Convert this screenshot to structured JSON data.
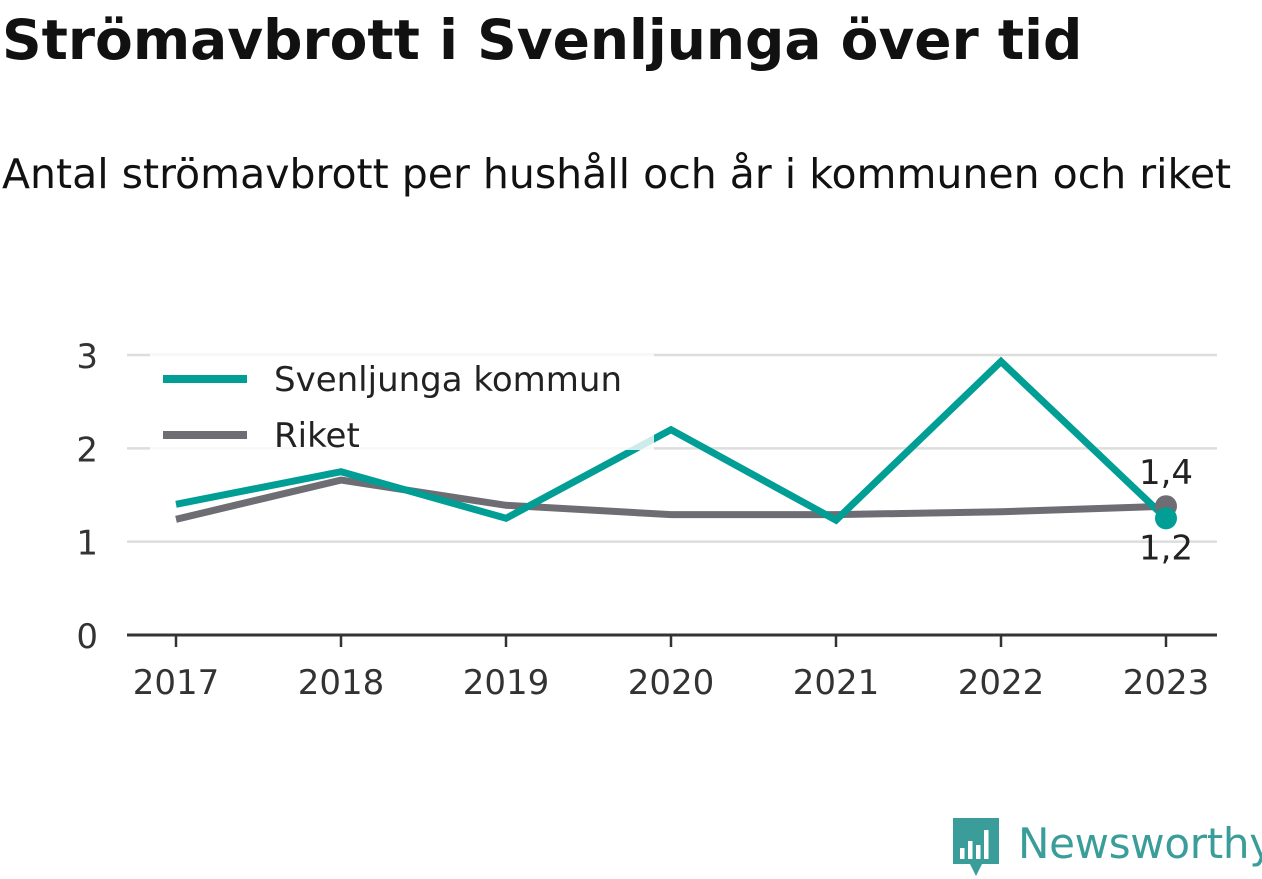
{
  "title": "Strömavbrott i Svenljunga över tid",
  "subtitle": "Antal strömavbrott per hushåll och år i kommunen och riket",
  "logo": {
    "name": "Newsworthy",
    "color": "#3a9d99"
  },
  "chart_data": {
    "type": "line",
    "title": "Strömavbrott i Svenljunga över tid",
    "subtitle": "Antal strömavbrott per hushåll och år i kommunen och riket",
    "xlabel": "",
    "ylabel": "",
    "categories": [
      "2017",
      "2018",
      "2019",
      "2020",
      "2021",
      "2022",
      "2023"
    ],
    "ylim": [
      0,
      3
    ],
    "yticks": [
      "0",
      "1",
      "2",
      "3"
    ],
    "grid": true,
    "legend_position": "top-left",
    "series": [
      {
        "name": "Svenljunga kommun",
        "color": "#009e94",
        "values": [
          1.4,
          1.75,
          1.25,
          2.2,
          1.23,
          2.93,
          1.25
        ]
      },
      {
        "name": "Riket",
        "color": "#6e6d73",
        "values": [
          1.24,
          1.66,
          1.39,
          1.29,
          1.29,
          1.32,
          1.38
        ]
      }
    ],
    "end_labels": {
      "Svenljunga kommun": "1,2",
      "Riket": "1,4"
    }
  }
}
